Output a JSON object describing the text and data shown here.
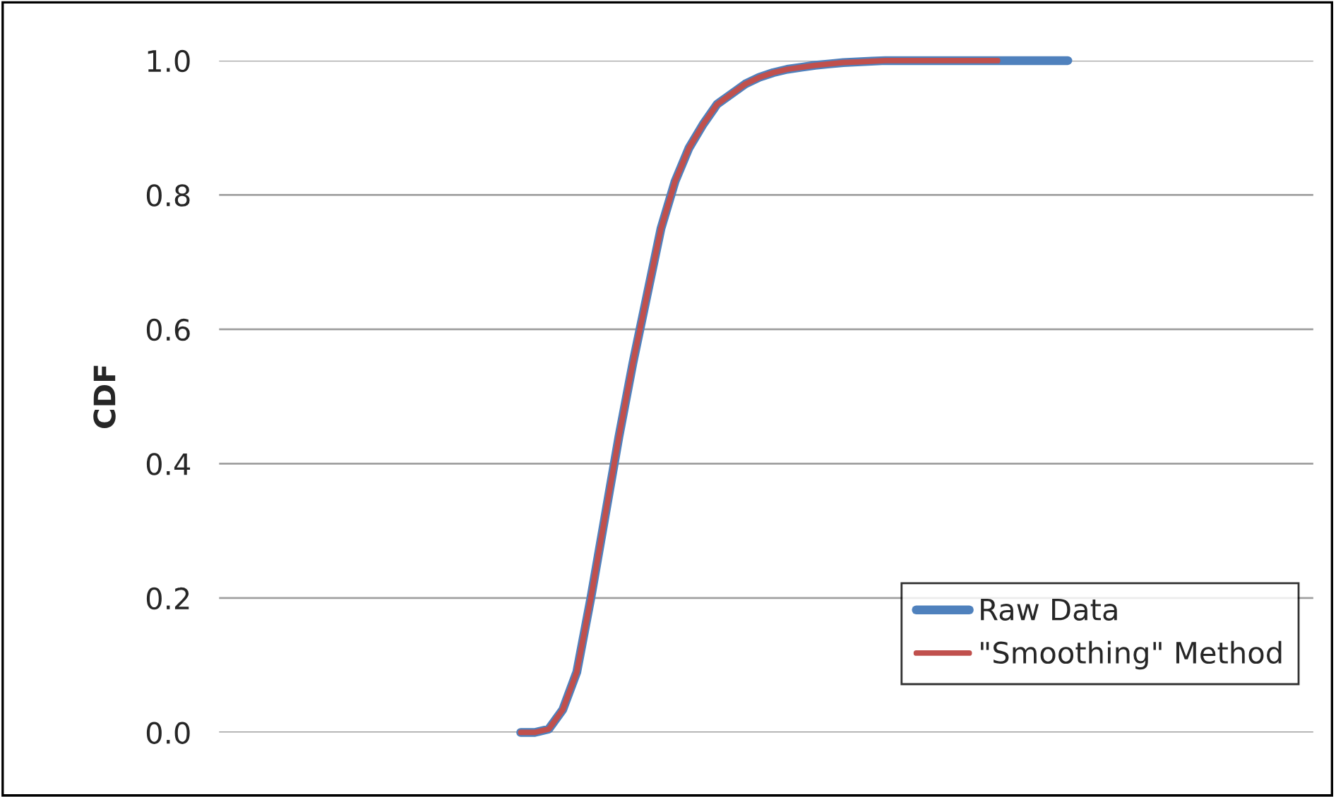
{
  "chart_data": {
    "type": "line",
    "ylabel": "CDF",
    "categories": [
      null,
      null,
      null,
      null,
      null,
      null,
      null,
      null,
      null,
      null,
      null,
      null,
      null,
      null,
      null,
      null,
      null,
      null,
      null,
      null,
      null,
      null,
      null,
      null,
      null,
      null,
      null,
      null,
      null,
      null,
      null,
      null,
      null,
      null,
      null,
      null,
      null,
      null,
      null,
      null,
      null,
      null,
      null,
      null,
      null,
      null,
      null,
      null,
      null,
      null,
      null,
      null,
      null,
      null,
      null,
      null,
      null,
      null,
      null,
      null,
      null,
      null,
      null,
      null,
      null,
      null,
      null,
      null,
      null,
      null,
      null,
      null,
      null,
      null,
      null,
      null,
      null,
      null
    ],
    "series": [
      {
        "name": "Raw Data",
        "color": "#4f81bd",
        "values": [
          null,
          null,
          null,
          null,
          null,
          null,
          null,
          null,
          null,
          null,
          null,
          null,
          null,
          null,
          null,
          null,
          null,
          null,
          null,
          null,
          null,
          0.0,
          0.0,
          0.005,
          0.034,
          0.09,
          0.2,
          0.32,
          0.44,
          0.55,
          0.65,
          0.75,
          0.82,
          0.87,
          0.905,
          0.935,
          0.95,
          0.965,
          0.975,
          0.982,
          0.987,
          0.99,
          0.993,
          0.995,
          0.997,
          0.998,
          0.999,
          1.0,
          1.0,
          1.0,
          1.0,
          1.0,
          1.0,
          1.0,
          1.0,
          1.0,
          1.0,
          1.0,
          1.0,
          1.0,
          1.0,
          null,
          null,
          null,
          null,
          null,
          null,
          null,
          null,
          null,
          null,
          null,
          null,
          null,
          null,
          null,
          null,
          null
        ]
      },
      {
        "name": "\"Smoothing\" Method",
        "color": "#c0504d",
        "values": [
          null,
          null,
          null,
          null,
          null,
          null,
          null,
          null,
          null,
          null,
          null,
          null,
          null,
          null,
          null,
          null,
          null,
          null,
          null,
          null,
          null,
          0.0,
          0.0,
          0.005,
          0.034,
          0.09,
          0.2,
          0.32,
          0.44,
          0.55,
          0.65,
          0.75,
          0.82,
          0.87,
          0.905,
          0.935,
          0.95,
          0.965,
          0.975,
          0.982,
          0.987,
          0.99,
          0.993,
          0.995,
          0.997,
          0.998,
          0.999,
          1.0,
          1.0,
          1.0,
          1.0,
          1.0,
          1.0,
          1.0,
          1.0,
          1.0,
          null,
          null,
          null,
          null,
          null,
          null,
          null,
          null,
          null,
          null,
          null,
          null,
          null,
          null,
          null,
          null,
          null,
          null,
          null,
          null,
          null,
          null
        ]
      }
    ],
    "ylim": [
      0,
      1
    ],
    "yticks": [
      {
        "value": 0,
        "label": "0.0"
      },
      {
        "value": 0.2,
        "label": "0.2"
      },
      {
        "value": 0.4,
        "label": "0.4"
      },
      {
        "value": 0.6,
        "label": "0.6"
      },
      {
        "value": 0.8,
        "label": "0.8"
      },
      {
        "value": 1,
        "label": "1.0"
      }
    ],
    "grid": "y",
    "legend": "bottom right",
    "tick_labels": "y"
  }
}
